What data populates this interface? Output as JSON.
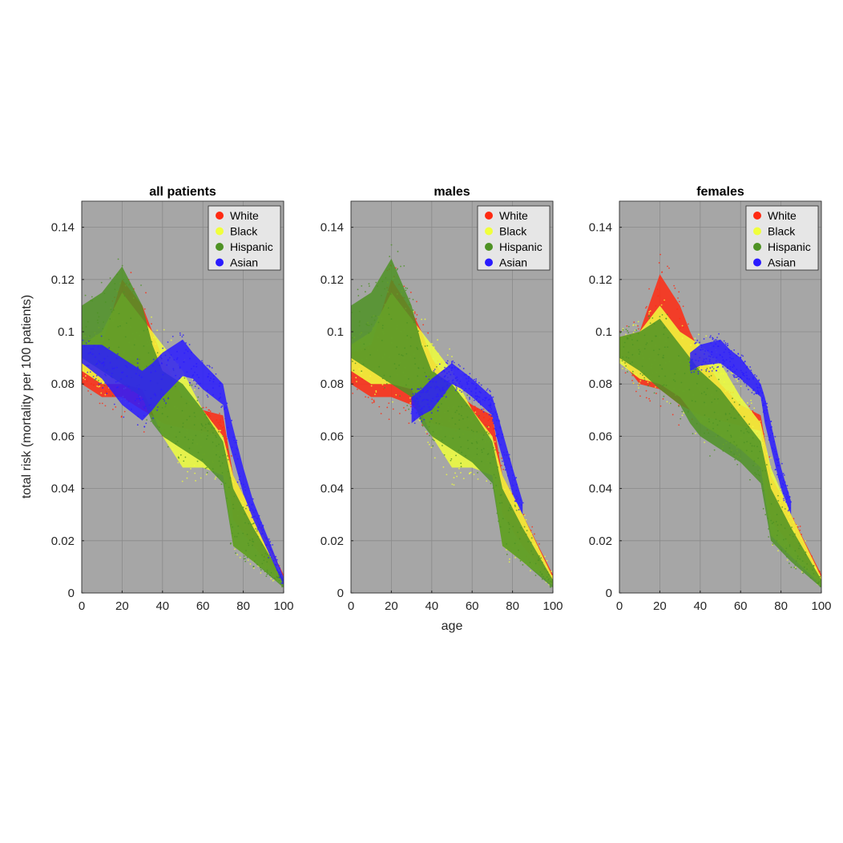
{
  "chart_data": [
    {
      "type": "scatter",
      "title": "all patients",
      "xlim": [
        0,
        100
      ],
      "ylim": [
        0,
        0.15
      ],
      "xticks": [
        "0",
        "20",
        "40",
        "60",
        "80",
        "100"
      ],
      "yticks": [
        "0",
        "0.02",
        "0.04",
        "0.06",
        "0.08",
        "0.1",
        "0.12",
        "0.14"
      ],
      "grid": true,
      "legend_position": "top-right",
      "background": "#a6a6a6",
      "series": [
        {
          "name": "White",
          "color": "#ff2a12",
          "x": [
            0,
            10,
            20,
            30,
            35,
            40,
            50,
            60,
            70,
            75,
            85,
            100
          ],
          "y_low": [
            0.08,
            0.075,
            0.075,
            0.07,
            0.068,
            0.065,
            0.063,
            0.062,
            0.06,
            0.028,
            0.018,
            0.004
          ],
          "y_high": [
            0.09,
            0.095,
            0.12,
            0.11,
            0.1,
            0.09,
            0.075,
            0.07,
            0.068,
            0.045,
            0.03,
            0.007
          ]
        },
        {
          "name": "Black",
          "color": "#f0ff3c",
          "x": [
            0,
            10,
            20,
            30,
            40,
            50,
            60,
            70,
            75,
            85,
            100
          ],
          "y_low": [
            0.085,
            0.08,
            0.08,
            0.078,
            0.06,
            0.048,
            0.048,
            0.045,
            0.018,
            0.012,
            0.003
          ],
          "y_high": [
            0.095,
            0.1,
            0.115,
            0.105,
            0.095,
            0.085,
            0.07,
            0.06,
            0.045,
            0.03,
            0.006
          ]
        },
        {
          "name": "Hispanic",
          "color": "#4e9224",
          "x": [
            0,
            10,
            20,
            30,
            35,
            40,
            50,
            60,
            70,
            75,
            85,
            100
          ],
          "y_low": [
            0.09,
            0.085,
            0.08,
            0.075,
            0.065,
            0.06,
            0.055,
            0.05,
            0.042,
            0.018,
            0.012,
            0.002
          ],
          "y_high": [
            0.11,
            0.115,
            0.125,
            0.11,
            0.095,
            0.085,
            0.08,
            0.07,
            0.058,
            0.04,
            0.025,
            0.005
          ]
        },
        {
          "name": "Asian",
          "color": "#2a1bff",
          "x": [
            0,
            10,
            20,
            30,
            35,
            40,
            50,
            55,
            60,
            70,
            72,
            80,
            85,
            100
          ],
          "y_low": [
            0.088,
            0.082,
            0.072,
            0.066,
            0.07,
            0.075,
            0.083,
            0.082,
            0.078,
            0.072,
            0.06,
            0.038,
            0.028,
            0.003
          ],
          "y_high": [
            0.095,
            0.095,
            0.09,
            0.085,
            0.088,
            0.092,
            0.097,
            0.092,
            0.088,
            0.08,
            0.072,
            0.048,
            0.035,
            0.006
          ]
        }
      ]
    },
    {
      "type": "scatter",
      "title": "males",
      "xlabel": "age",
      "xlim": [
        0,
        100
      ],
      "ylim": [
        0,
        0.15
      ],
      "xticks": [
        "0",
        "20",
        "40",
        "60",
        "80",
        "100"
      ],
      "yticks": [
        "0",
        "0.02",
        "0.04",
        "0.06",
        "0.08",
        "0.1",
        "0.12",
        "0.14"
      ],
      "grid": true,
      "legend_position": "top-right",
      "background": "#a6a6a6",
      "series": [
        {
          "name": "White",
          "color": "#ff2a12",
          "x": [
            0,
            10,
            20,
            30,
            35,
            40,
            50,
            60,
            70,
            75,
            85,
            100
          ],
          "y_low": [
            0.08,
            0.075,
            0.075,
            0.072,
            0.068,
            0.065,
            0.063,
            0.062,
            0.06,
            0.03,
            0.018,
            0.004
          ],
          "y_high": [
            0.092,
            0.095,
            0.12,
            0.108,
            0.1,
            0.09,
            0.078,
            0.072,
            0.068,
            0.045,
            0.03,
            0.007
          ]
        },
        {
          "name": "Black",
          "color": "#f0ff3c",
          "x": [
            0,
            10,
            20,
            30,
            40,
            50,
            60,
            70,
            75,
            85,
            100
          ],
          "y_low": [
            0.085,
            0.08,
            0.08,
            0.078,
            0.06,
            0.048,
            0.048,
            0.045,
            0.018,
            0.012,
            0.003
          ],
          "y_high": [
            0.095,
            0.1,
            0.115,
            0.105,
            0.095,
            0.085,
            0.07,
            0.06,
            0.045,
            0.03,
            0.006
          ]
        },
        {
          "name": "Hispanic",
          "color": "#4e9224",
          "x": [
            0,
            10,
            20,
            30,
            35,
            40,
            50,
            60,
            70,
            75,
            85,
            100
          ],
          "y_low": [
            0.09,
            0.085,
            0.08,
            0.075,
            0.065,
            0.06,
            0.055,
            0.05,
            0.042,
            0.018,
            0.012,
            0.002
          ],
          "y_high": [
            0.11,
            0.115,
            0.128,
            0.11,
            0.095,
            0.085,
            0.08,
            0.07,
            0.058,
            0.04,
            0.025,
            0.005
          ]
        },
        {
          "name": "Asian",
          "color": "#2a1bff",
          "x": [
            30,
            35,
            40,
            50,
            55,
            60,
            70,
            72,
            80,
            85
          ],
          "y_low": [
            0.065,
            0.068,
            0.07,
            0.08,
            0.078,
            0.075,
            0.068,
            0.06,
            0.038,
            0.03
          ],
          "y_high": [
            0.075,
            0.078,
            0.082,
            0.088,
            0.085,
            0.082,
            0.075,
            0.07,
            0.048,
            0.035
          ]
        }
      ]
    },
    {
      "type": "scatter",
      "title": "females",
      "xlim": [
        0,
        100
      ],
      "ylim": [
        0,
        0.15
      ],
      "xticks": [
        "0",
        "20",
        "40",
        "60",
        "80",
        "100"
      ],
      "yticks": [
        "0",
        "0.02",
        "0.04",
        "0.06",
        "0.08",
        "0.1",
        "0.12",
        "0.14"
      ],
      "grid": true,
      "legend_position": "top-right",
      "background": "#a6a6a6",
      "series": [
        {
          "name": "White",
          "color": "#ff2a12",
          "x": [
            0,
            10,
            20,
            30,
            35,
            40,
            50,
            60,
            70,
            75,
            85,
            100
          ],
          "y_low": [
            0.09,
            0.08,
            0.078,
            0.072,
            0.07,
            0.068,
            0.066,
            0.064,
            0.062,
            0.028,
            0.018,
            0.004
          ],
          "y_high": [
            0.098,
            0.1,
            0.122,
            0.11,
            0.1,
            0.092,
            0.08,
            0.072,
            0.068,
            0.045,
            0.03,
            0.007
          ]
        },
        {
          "name": "Black",
          "color": "#f0ff3c",
          "x": [
            0,
            10,
            20,
            30,
            40,
            50,
            60,
            70,
            75,
            85,
            100
          ],
          "y_low": [
            0.088,
            0.082,
            0.08,
            0.075,
            0.065,
            0.06,
            0.055,
            0.048,
            0.022,
            0.014,
            0.003
          ],
          "y_high": [
            0.098,
            0.1,
            0.11,
            0.1,
            0.095,
            0.088,
            0.075,
            0.065,
            0.048,
            0.03,
            0.006
          ]
        },
        {
          "name": "Hispanic",
          "color": "#4e9224",
          "x": [
            0,
            10,
            20,
            30,
            35,
            40,
            50,
            60,
            70,
            75,
            85,
            100
          ],
          "y_low": [
            0.09,
            0.085,
            0.078,
            0.072,
            0.065,
            0.06,
            0.055,
            0.05,
            0.042,
            0.02,
            0.012,
            0.002
          ],
          "y_high": [
            0.098,
            0.1,
            0.105,
            0.095,
            0.09,
            0.085,
            0.078,
            0.068,
            0.058,
            0.04,
            0.025,
            0.005
          ]
        },
        {
          "name": "Asian",
          "color": "#2a1bff",
          "x": [
            35,
            40,
            50,
            55,
            60,
            70,
            72,
            80,
            85
          ],
          "y_low": [
            0.085,
            0.087,
            0.088,
            0.085,
            0.082,
            0.075,
            0.065,
            0.04,
            0.03
          ],
          "y_high": [
            0.092,
            0.095,
            0.097,
            0.093,
            0.09,
            0.08,
            0.075,
            0.048,
            0.035
          ]
        }
      ]
    }
  ],
  "shared_ylabel": "total risk (mortality per 100 patients)"
}
